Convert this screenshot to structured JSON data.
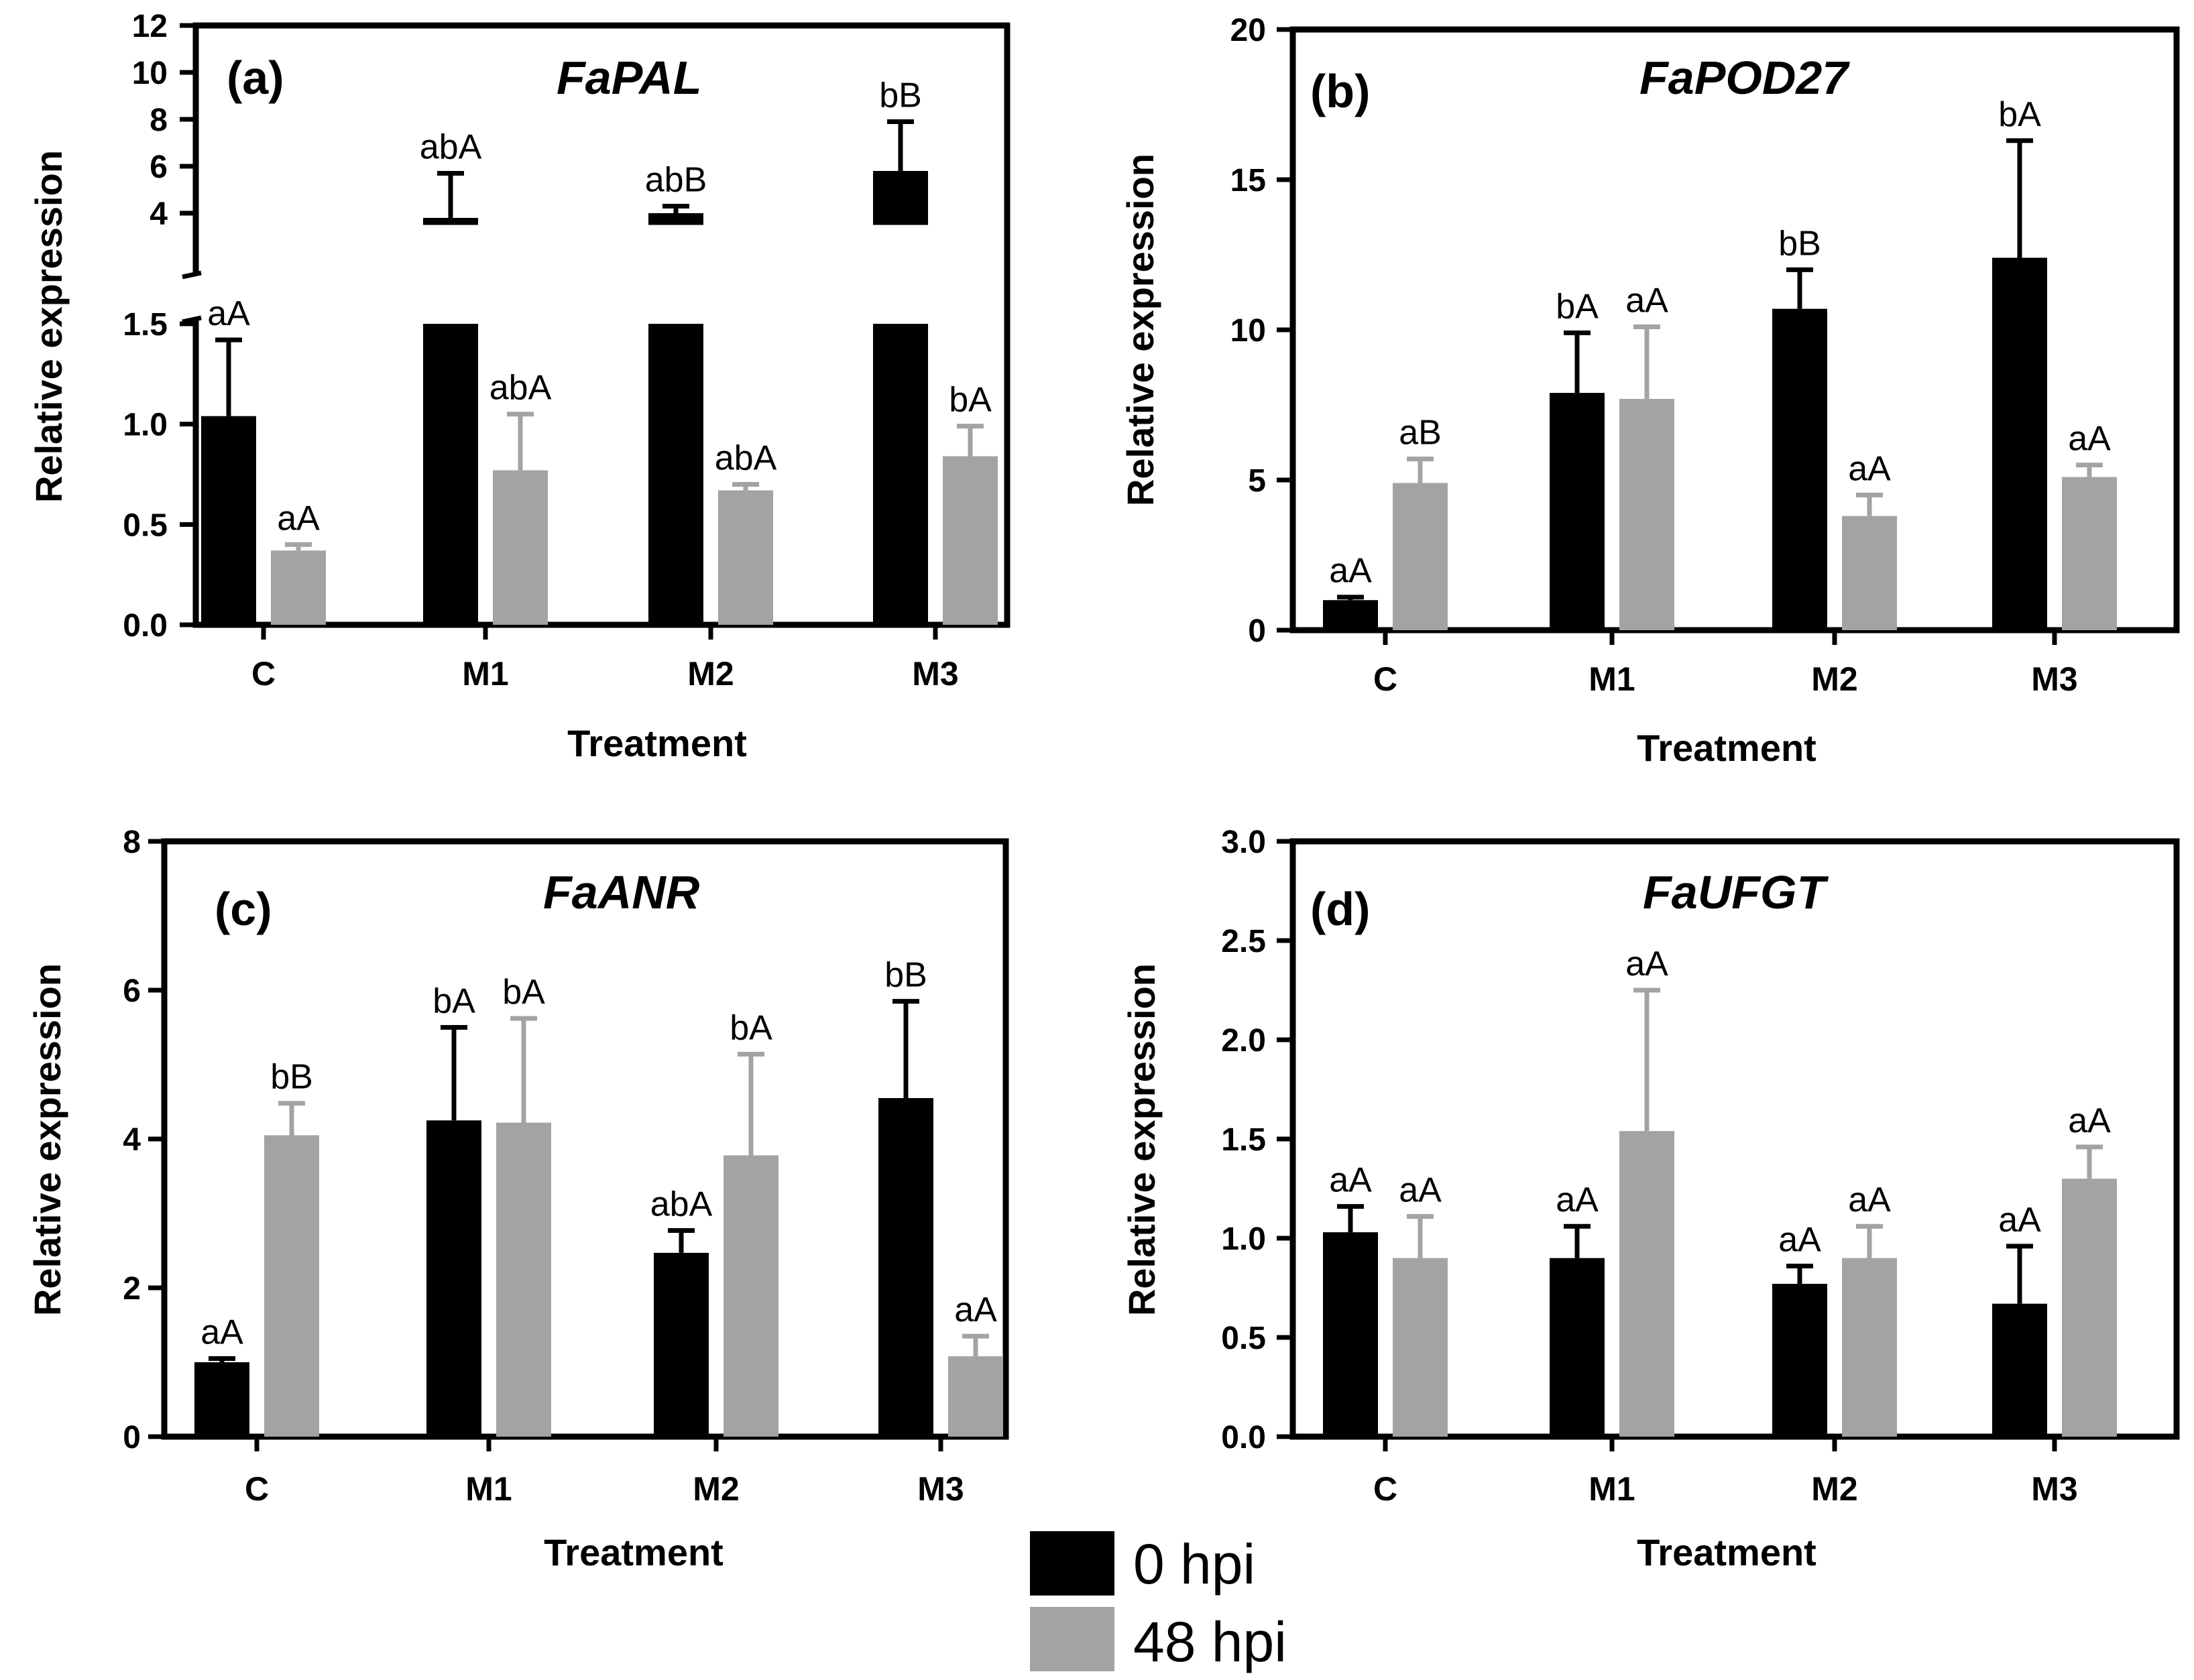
{
  "series_names": [
    "0 hpi",
    "48 hpi"
  ],
  "colors": {
    "hpi0": "#000000",
    "hpi48": "#a3a3a3",
    "axis": "#000000"
  },
  "legend": [
    {
      "label": "0 hpi",
      "color": "#000000"
    },
    {
      "label": "48 hpi",
      "color": "#a3a3a3"
    }
  ],
  "chart_data": [
    {
      "type": "bar",
      "panel": "(a)",
      "title": "FaPAL",
      "xlabel": "Treatment",
      "ylabel": "Relative expression",
      "categories": [
        "C",
        "M1",
        "M2",
        "M3"
      ],
      "axis_break": {
        "lower_ylim": [
          0,
          1.5
        ],
        "upper_ylim": [
          3,
          12
        ]
      },
      "yticks_lower": [
        "0.0",
        "0.5",
        "1.0",
        "1.5"
      ],
      "yticks_upper": [
        "4",
        "6",
        "8",
        "10",
        "12"
      ],
      "series": [
        {
          "name": "0 hpi",
          "values": [
            1.04,
            3.8,
            4.0,
            5.8
          ],
          "errors": [
            0.38,
            1.9,
            0.3,
            2.1
          ],
          "labels": [
            "aA",
            "abA",
            "abB",
            "bB"
          ]
        },
        {
          "name": "48 hpi",
          "values": [
            0.37,
            0.77,
            0.67,
            0.84
          ],
          "errors": [
            0.03,
            0.28,
            0.03,
            0.15
          ],
          "labels": [
            "aA",
            "abA",
            "abA",
            "bA"
          ]
        }
      ]
    },
    {
      "type": "bar",
      "panel": "(b)",
      "title": "FaPOD27",
      "xlabel": "Treatment",
      "ylabel": "Relative expression",
      "categories": [
        "C",
        "M1",
        "M2",
        "M3"
      ],
      "ylim": [
        0,
        20
      ],
      "yticks": [
        "0",
        "5",
        "10",
        "15",
        "20"
      ],
      "series": [
        {
          "name": "0 hpi",
          "values": [
            1.0,
            7.9,
            10.7,
            12.4
          ],
          "errors": [
            0.1,
            2.0,
            1.3,
            3.9
          ],
          "labels": [
            "aA",
            "bA",
            "bB",
            "bA"
          ]
        },
        {
          "name": "48 hpi",
          "values": [
            4.9,
            7.7,
            3.8,
            5.1
          ],
          "errors": [
            0.8,
            2.4,
            0.7,
            0.4
          ],
          "labels": [
            "aB",
            "aA",
            "aA",
            "aA"
          ]
        }
      ]
    },
    {
      "type": "bar",
      "panel": "(c)",
      "title": "FaANR",
      "xlabel": "Treatment",
      "ylabel": "Relative expression",
      "categories": [
        "C",
        "M1",
        "M2",
        "M3"
      ],
      "ylim": [
        0,
        8
      ],
      "yticks": [
        "0",
        "2",
        "4",
        "6",
        "8"
      ],
      "series": [
        {
          "name": "0 hpi",
          "values": [
            1.0,
            4.25,
            2.47,
            4.55
          ],
          "errors": [
            0.05,
            1.25,
            0.3,
            1.3
          ],
          "labels": [
            "aA",
            "bA",
            "abA",
            "bB"
          ]
        },
        {
          "name": "48 hpi",
          "values": [
            4.05,
            4.22,
            3.78,
            1.08
          ],
          "errors": [
            0.43,
            1.4,
            1.36,
            0.27
          ],
          "labels": [
            "bB",
            "bA",
            "bA",
            "aA"
          ]
        }
      ]
    },
    {
      "type": "bar",
      "panel": "(d)",
      "title": "FaUFGT",
      "xlabel": "Treatment",
      "ylabel": "Relative expression",
      "categories": [
        "C",
        "M1",
        "M2",
        "M3"
      ],
      "ylim": [
        0,
        3.0
      ],
      "yticks": [
        "0.0",
        "0.5",
        "1.0",
        "1.5",
        "2.0",
        "2.5",
        "3.0"
      ],
      "series": [
        {
          "name": "0 hpi",
          "values": [
            1.03,
            0.9,
            0.77,
            0.67
          ],
          "errors": [
            0.13,
            0.16,
            0.09,
            0.29
          ],
          "labels": [
            "aA",
            "aA",
            "aA",
            "aA"
          ]
        },
        {
          "name": "48 hpi",
          "values": [
            0.9,
            1.54,
            0.9,
            1.3
          ],
          "errors": [
            0.21,
            0.71,
            0.16,
            0.16
          ],
          "labels": [
            "aA",
            "aA",
            "aA",
            "aA"
          ]
        }
      ]
    }
  ]
}
